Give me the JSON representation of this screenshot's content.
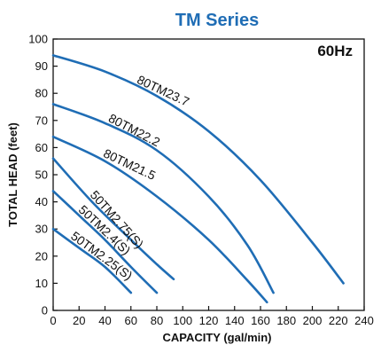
{
  "chart_data": {
    "type": "line",
    "title": "TM Series",
    "annotation": "60Hz",
    "xlabel": "CAPACITY (gal/min)",
    "ylabel": "TOTAL HEAD (feet)",
    "xlim": [
      0,
      240
    ],
    "ylim": [
      0,
      100
    ],
    "xticks": [
      0,
      20,
      40,
      60,
      80,
      100,
      120,
      140,
      160,
      180,
      200,
      220,
      240
    ],
    "yticks": [
      0,
      10,
      20,
      30,
      40,
      50,
      60,
      70,
      80,
      90,
      100
    ],
    "grid": false,
    "legend": "inline labels",
    "colors": {
      "curve": "#1f6db5",
      "title": "#1f6db5"
    },
    "series": [
      {
        "name": "80TM23.7",
        "x": [
          0,
          40,
          80,
          120,
          160,
          200,
          224
        ],
        "y": [
          94,
          88,
          79,
          66,
          48,
          25,
          10
        ]
      },
      {
        "name": "80TM22.2",
        "x": [
          0,
          40,
          80,
          120,
          150,
          170
        ],
        "y": [
          76,
          69,
          59,
          42,
          24,
          6.5
        ]
      },
      {
        "name": "80TM21.5",
        "x": [
          0,
          40,
          80,
          120,
          150,
          165
        ],
        "y": [
          64,
          55,
          42,
          26,
          11,
          3
        ]
      },
      {
        "name": "50TM2.75(S)",
        "x": [
          0,
          30,
          60,
          80,
          93
        ],
        "y": [
          56,
          40,
          26,
          17,
          11.5
        ]
      },
      {
        "name": "50TM2.4(S)",
        "x": [
          0,
          20,
          40,
          60,
          80
        ],
        "y": [
          44,
          35,
          26,
          16,
          6.5
        ]
      },
      {
        "name": "50TM2.25(S)",
        "x": [
          0,
          20,
          40,
          60
        ],
        "y": [
          30,
          23,
          16,
          6.5
        ]
      }
    ]
  }
}
